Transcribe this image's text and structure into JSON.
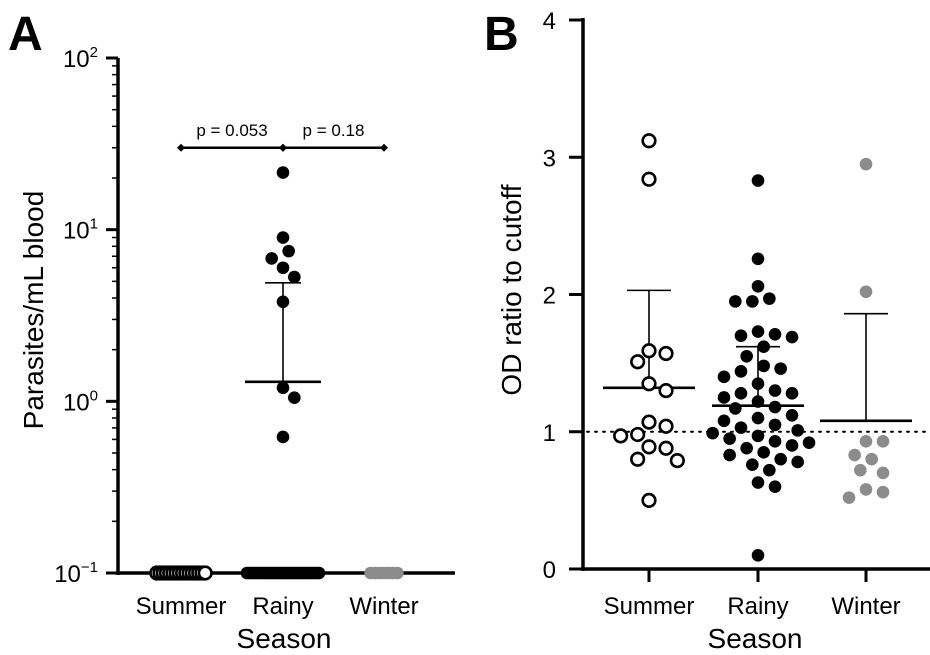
{
  "panels": {
    "a": {
      "letter": "A"
    },
    "b": {
      "letter": "B"
    }
  },
  "chart_data": [
    {
      "type": "scatter",
      "panel": "A",
      "ylabel": "Parasites/mL blood",
      "xlabel": "Season",
      "yscale": "log",
      "ylim": [
        0.1,
        100
      ],
      "yticks": [
        {
          "value": 0.1,
          "base": "10",
          "exp": "−1"
        },
        {
          "value": 1,
          "base": "10",
          "exp": "0"
        },
        {
          "value": 10,
          "base": "10",
          "exp": "1"
        },
        {
          "value": 100,
          "base": "10",
          "exp": "2"
        }
      ],
      "categories": [
        "Summer",
        "Rainy",
        "Winter"
      ],
      "series": [
        {
          "category": "Summer",
          "marker": "open",
          "color": "#000000",
          "values": [
            0.1,
            0.1,
            0.1,
            0.1,
            0.1,
            0.1,
            0.1,
            0.1,
            0.1,
            0.1,
            0.1,
            0.1,
            0.1,
            0.1,
            0.1,
            0.1
          ]
        },
        {
          "category": "Rainy",
          "marker": "filled",
          "color": "#000000",
          "values": [
            21.5,
            9.0,
            7.5,
            6.8,
            6.0,
            5.3,
            3.8,
            1.2,
            1.05,
            0.62,
            0.1,
            0.1,
            0.1,
            0.1,
            0.1,
            0.1,
            0.1,
            0.1,
            0.1,
            0.1,
            0.1,
            0.1,
            0.1,
            0.1,
            0.1,
            0.1,
            0.1,
            0.1,
            0.1,
            0.1,
            0.1,
            0.1,
            0.1,
            0.1,
            0.1,
            0.1,
            0.1,
            0.1,
            0.1,
            0.1
          ],
          "mean": 1.3,
          "error_upper": 4.9
        },
        {
          "category": "Winter",
          "marker": "filled",
          "color": "#8c8c8c",
          "values": [
            0.1,
            0.1,
            0.1,
            0.1,
            0.1,
            0.1,
            0.1
          ]
        }
      ],
      "comparisons": [
        {
          "from": "Summer",
          "to": "Rainy",
          "label": "p = 0.053"
        },
        {
          "from": "Rainy",
          "to": "Winter",
          "label": "p = 0.18"
        }
      ],
      "bracket_y": 30
    },
    {
      "type": "scatter",
      "panel": "B",
      "ylabel": "OD ratio to cutoff",
      "xlabel": "Season",
      "ylim": [
        0,
        4
      ],
      "yticks": [
        0,
        1,
        2,
        3,
        4
      ],
      "reference_line": 1,
      "categories": [
        "Summer",
        "Rainy",
        "Winter"
      ],
      "series": [
        {
          "category": "Summer",
          "marker": "open",
          "color": "#000000",
          "values": [
            3.12,
            2.84,
            1.59,
            1.57,
            1.51,
            1.35,
            1.3,
            1.07,
            1.04,
            0.98,
            0.97,
            0.89,
            0.88,
            0.8,
            0.79,
            0.5
          ],
          "mean": 1.32,
          "error_upper": 2.03
        },
        {
          "category": "Rainy",
          "marker": "filled",
          "color": "#000000",
          "values": [
            2.83,
            2.26,
            2.06,
            1.97,
            1.95,
            1.95,
            1.73,
            1.71,
            1.7,
            1.69,
            1.62,
            1.55,
            1.48,
            1.46,
            1.44,
            1.4,
            1.35,
            1.3,
            1.28,
            1.28,
            1.25,
            1.22,
            1.18,
            1.17,
            1.12,
            1.1,
            1.08,
            1.05,
            1.03,
            1.01,
            0.99,
            0.97,
            0.95,
            0.93,
            0.92,
            0.9,
            0.88,
            0.85,
            0.83,
            0.8,
            0.78,
            0.76,
            0.72,
            0.63,
            0.6,
            0.1
          ],
          "mean": 1.19,
          "error_upper": 1.62
        },
        {
          "category": "Winter",
          "marker": "filled",
          "color": "#8c8c8c",
          "values": [
            2.95,
            2.02,
            0.93,
            0.93,
            0.83,
            0.8,
            0.72,
            0.7,
            0.58,
            0.56,
            0.52
          ],
          "mean": 1.08,
          "error_upper": 1.86
        }
      ]
    }
  ]
}
